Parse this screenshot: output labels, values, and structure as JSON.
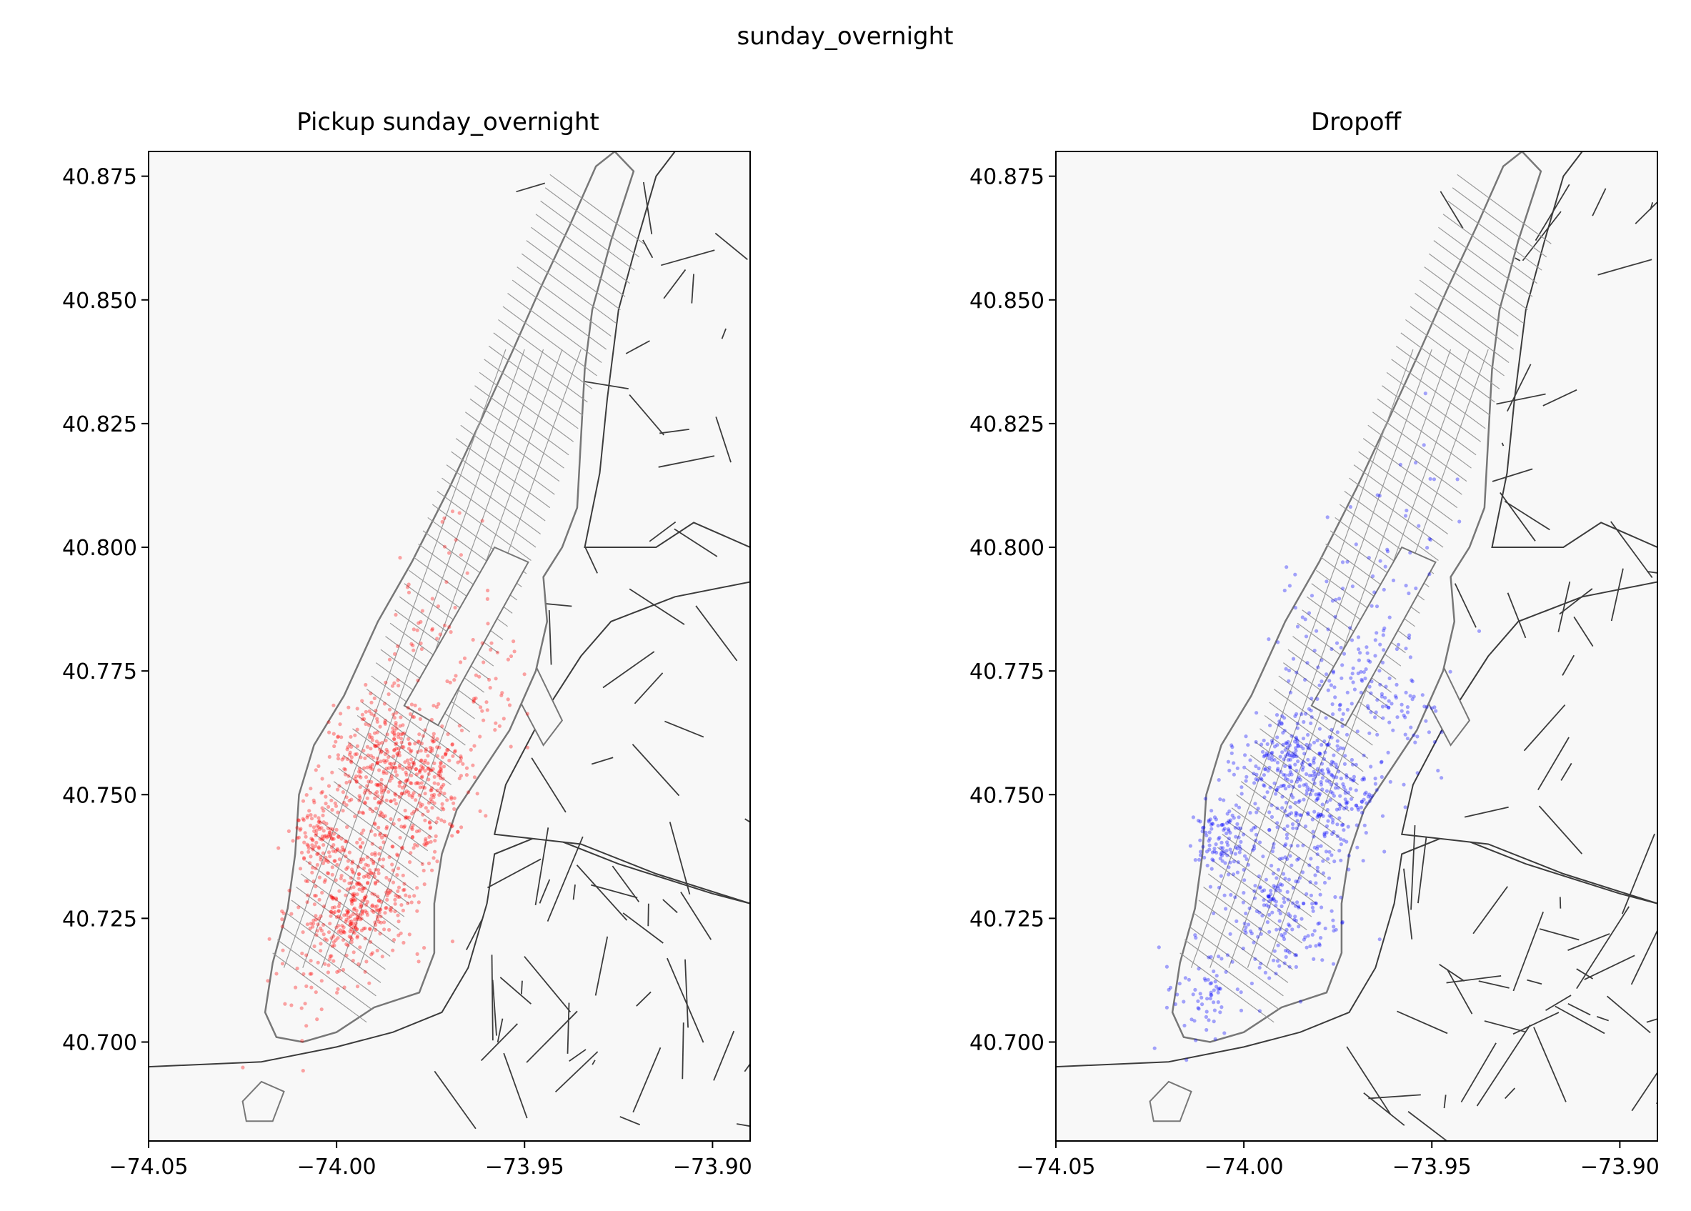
{
  "figure": {
    "suptitle": "sunday_overnight"
  },
  "panels": [
    {
      "id": "pickup",
      "title": "Pickup sunday_overnight",
      "point_color": "#ff0000"
    },
    {
      "id": "dropoff",
      "title": "Dropoff",
      "point_color": "#0000ff"
    }
  ],
  "map_style": {
    "land_fill": "#f8f8f8",
    "borough_line": "#3c3c3c",
    "manhattan_outline": "#777777",
    "street_line": "#9a9a9a"
  },
  "chart_data": [
    {
      "type": "scatter",
      "title": "Pickup sunday_overnight",
      "xlabel": "",
      "ylabel": "",
      "xlim": [
        -74.05,
        -73.89
      ],
      "ylim": [
        40.68,
        40.88
      ],
      "xticks": [
        "−74.05",
        "−74.00",
        "−73.95",
        "−73.90"
      ],
      "xtick_values": [
        -74.05,
        -74.0,
        -73.95,
        -73.9
      ],
      "yticks": [
        "40.875",
        "40.850",
        "40.825",
        "40.800",
        "40.775",
        "40.750",
        "40.725",
        "40.700"
      ],
      "ytick_values": [
        40.875,
        40.85,
        40.825,
        40.8,
        40.775,
        40.75,
        40.725,
        40.7
      ],
      "series": [
        {
          "color": "#ff0000",
          "clusters": [
            {
              "lon": -73.988,
              "lat": 40.758,
              "n": 260,
              "sx": 0.008,
              "sy": 0.006
            },
            {
              "lon": -73.991,
              "lat": 40.73,
              "n": 240,
              "sx": 0.007,
              "sy": 0.007
            },
            {
              "lon": -73.98,
              "lat": 40.748,
              "n": 180,
              "sx": 0.008,
              "sy": 0.006
            },
            {
              "lon": -74.004,
              "lat": 40.741,
              "n": 130,
              "sx": 0.004,
              "sy": 0.004
            },
            {
              "lon": -73.997,
              "lat": 40.724,
              "n": 120,
              "sx": 0.006,
              "sy": 0.004
            },
            {
              "lon": -73.974,
              "lat": 40.757,
              "n": 70,
              "sx": 0.004,
              "sy": 0.004
            },
            {
              "lon": -73.96,
              "lat": 40.772,
              "n": 45,
              "sx": 0.006,
              "sy": 0.006
            },
            {
              "lon": -73.978,
              "lat": 40.78,
              "n": 30,
              "sx": 0.006,
              "sy": 0.006
            },
            {
              "lon": -74.008,
              "lat": 40.712,
              "n": 40,
              "sx": 0.006,
              "sy": 0.007
            },
            {
              "lon": -73.968,
              "lat": 40.798,
              "n": 15,
              "sx": 0.01,
              "sy": 0.008
            }
          ]
        }
      ]
    },
    {
      "type": "scatter",
      "title": "Dropoff",
      "xlabel": "",
      "ylabel": "",
      "xlim": [
        -74.05,
        -73.89
      ],
      "ylim": [
        40.68,
        40.88
      ],
      "xticks": [
        "−74.05",
        "−74.00",
        "−73.95",
        "−73.90"
      ],
      "xtick_values": [
        -74.05,
        -74.0,
        -73.95,
        -73.9
      ],
      "yticks": [
        "40.875",
        "40.850",
        "40.825",
        "40.800",
        "40.775",
        "40.750",
        "40.725",
        "40.700"
      ],
      "ytick_values": [
        40.875,
        40.85,
        40.825,
        40.8,
        40.775,
        40.75,
        40.725,
        40.7
      ],
      "series": [
        {
          "color": "#0000ff",
          "clusters": [
            {
              "lon": -73.986,
              "lat": 40.757,
              "n": 230,
              "sx": 0.008,
              "sy": 0.006
            },
            {
              "lon": -73.989,
              "lat": 40.728,
              "n": 220,
              "sx": 0.008,
              "sy": 0.008
            },
            {
              "lon": -73.978,
              "lat": 40.748,
              "n": 170,
              "sx": 0.008,
              "sy": 0.006
            },
            {
              "lon": -74.005,
              "lat": 40.741,
              "n": 110,
              "sx": 0.004,
              "sy": 0.004
            },
            {
              "lon": -73.96,
              "lat": 40.77,
              "n": 90,
              "sx": 0.007,
              "sy": 0.008
            },
            {
              "lon": -73.977,
              "lat": 40.78,
              "n": 70,
              "sx": 0.007,
              "sy": 0.008
            },
            {
              "lon": -74.01,
              "lat": 40.71,
              "n": 70,
              "sx": 0.005,
              "sy": 0.005
            },
            {
              "lon": -73.96,
              "lat": 40.795,
              "n": 35,
              "sx": 0.008,
              "sy": 0.01
            },
            {
              "lon": -73.95,
              "lat": 40.815,
              "n": 8,
              "sx": 0.005,
              "sy": 0.006
            }
          ]
        }
      ]
    }
  ]
}
